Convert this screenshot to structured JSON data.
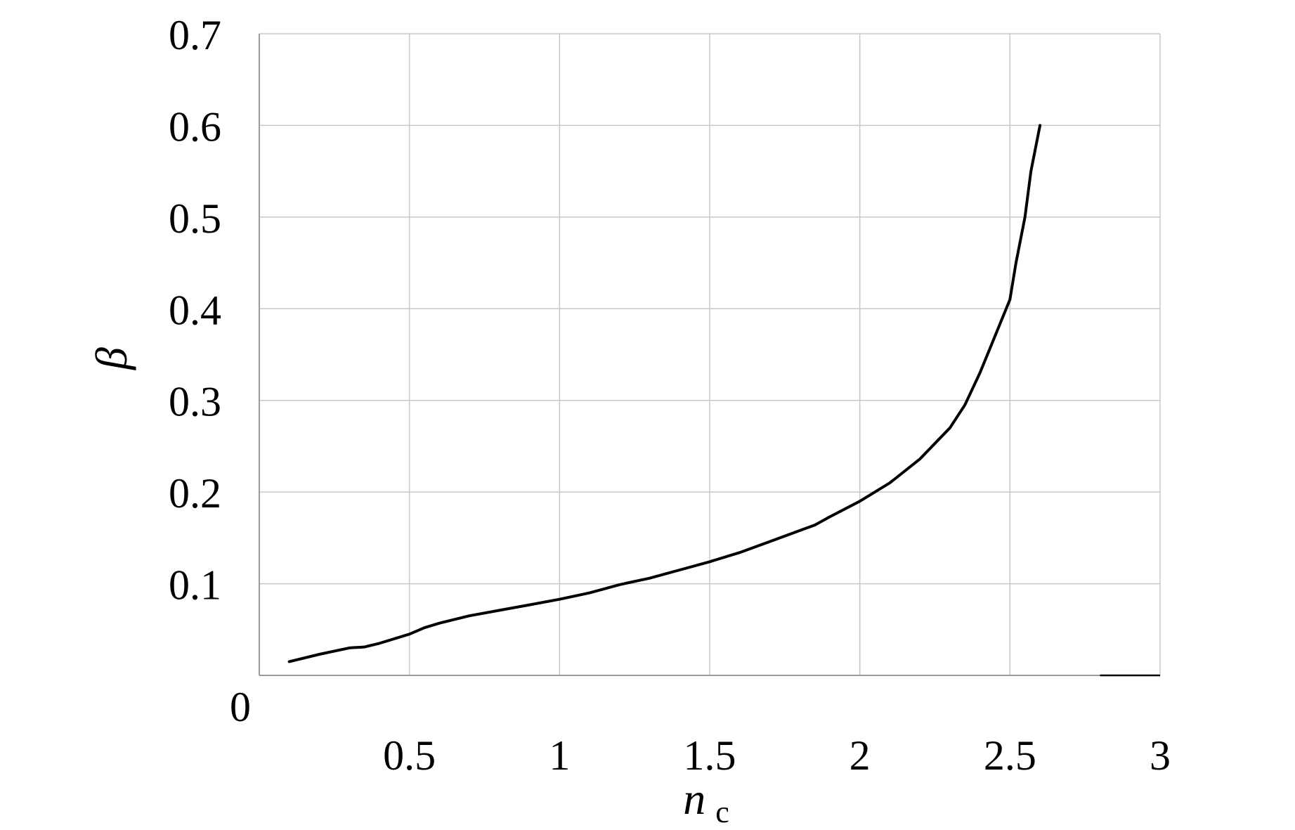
{
  "chart_data": {
    "type": "line",
    "title": "",
    "xlabel": "n",
    "xlabel_subscript": "c",
    "ylabel": "β",
    "xlim": [
      0,
      3
    ],
    "ylim": [
      0,
      0.7
    ],
    "grid": true,
    "x_ticks": [
      {
        "value": 0.5,
        "label": "0.5"
      },
      {
        "value": 1,
        "label": "1"
      },
      {
        "value": 1.5,
        "label": "1.5"
      },
      {
        "value": 2,
        "label": "2"
      },
      {
        "value": 2.5,
        "label": "2.5"
      },
      {
        "value": 3,
        "label": "3"
      }
    ],
    "y_ticks": [
      {
        "value": 0.1,
        "label": "0.1"
      },
      {
        "value": 0.2,
        "label": "0.2"
      },
      {
        "value": 0.3,
        "label": "0.3"
      },
      {
        "value": 0.4,
        "label": "0.4"
      },
      {
        "value": 0.5,
        "label": "0.5"
      },
      {
        "value": 0.6,
        "label": "0.6"
      },
      {
        "value": 0.7,
        "label": "0.7"
      }
    ],
    "origin_label": "0",
    "series": [
      {
        "color": "#000000",
        "x": [
          0.1,
          0.2,
          0.3,
          0.35,
          0.4,
          0.5,
          0.55,
          0.6,
          0.7,
          0.8,
          0.9,
          1.0,
          1.1,
          1.2,
          1.3,
          1.4,
          1.5,
          1.6,
          1.7,
          1.8,
          1.85,
          1.9,
          2.0,
          2.1,
          2.2,
          2.3,
          2.35,
          2.4,
          2.45,
          2.5,
          2.52,
          2.55,
          2.57,
          2.6
        ],
        "y": [
          0.015,
          0.023,
          0.03,
          0.031,
          0.035,
          0.045,
          0.052,
          0.057,
          0.065,
          0.071,
          0.077,
          0.083,
          0.09,
          0.099,
          0.106,
          0.115,
          0.124,
          0.134,
          0.146,
          0.158,
          0.164,
          0.173,
          0.19,
          0.21,
          0.236,
          0.27,
          0.295,
          0.33,
          0.37,
          0.41,
          0.45,
          0.5,
          0.55,
          0.6
        ]
      }
    ]
  }
}
